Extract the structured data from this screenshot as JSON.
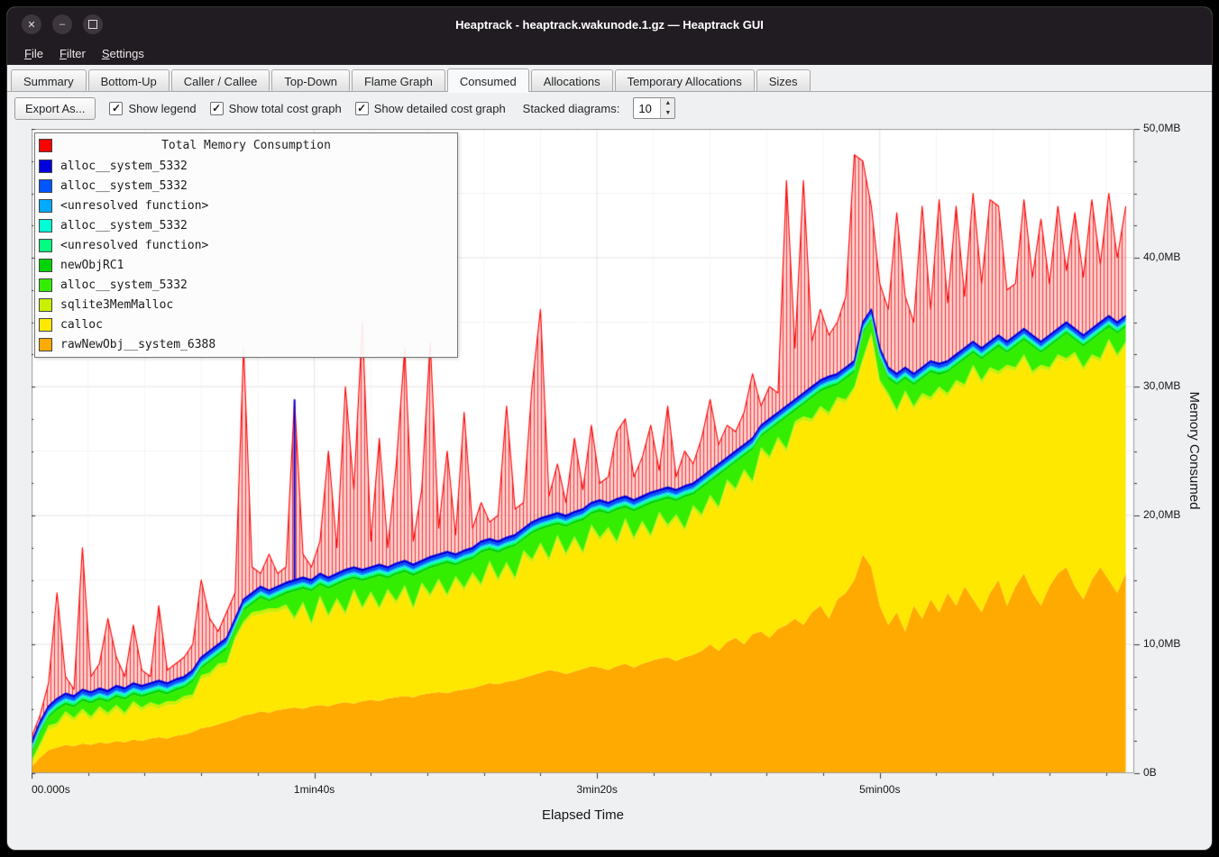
{
  "window": {
    "title": "Heaptrack - heaptrack.wakunode.1.gz — Heaptrack GUI"
  },
  "menu": {
    "items": [
      {
        "label": "File"
      },
      {
        "label": "Filter"
      },
      {
        "label": "Settings"
      }
    ]
  },
  "tabs": [
    {
      "label": "Summary",
      "active": false
    },
    {
      "label": "Bottom-Up",
      "active": false
    },
    {
      "label": "Caller / Callee",
      "active": false
    },
    {
      "label": "Top-Down",
      "active": false
    },
    {
      "label": "Flame Graph",
      "active": false
    },
    {
      "label": "Consumed",
      "active": true
    },
    {
      "label": "Allocations",
      "active": false
    },
    {
      "label": "Temporary Allocations",
      "active": false
    },
    {
      "label": "Sizes",
      "active": false
    }
  ],
  "toolbar": {
    "export_label": "Export As...",
    "checkboxes": [
      {
        "label": "Show legend",
        "checked": true
      },
      {
        "label": "Show total cost graph",
        "checked": true
      },
      {
        "label": "Show detailed cost graph",
        "checked": true
      }
    ],
    "stacked_label": "Stacked diagrams:",
    "stacked_value": "10"
  },
  "legend": {
    "title": "Total Memory Consumption",
    "title_color": "#ff0000",
    "items": [
      {
        "label": "alloc__system_5332",
        "color": "#0000dc"
      },
      {
        "label": "alloc__system_5332",
        "color": "#0055ff"
      },
      {
        "label": "<unresolved function>",
        "color": "#00aaff"
      },
      {
        "label": "alloc__system_5332",
        "color": "#00ffd5"
      },
      {
        "label": "<unresolved function>",
        "color": "#00ff80"
      },
      {
        "label": "newObjRC1",
        "color": "#00d400"
      },
      {
        "label": "alloc__system_5332",
        "color": "#33ee00"
      },
      {
        "label": "sqlite3MemMalloc",
        "color": "#c8f000"
      },
      {
        "label": "calloc",
        "color": "#ffe800"
      },
      {
        "label": "rawNewObj__system_6388",
        "color": "#ffaa00"
      }
    ]
  },
  "axes": {
    "y_label": "Memory Consumed",
    "x_label": "Elapsed Time",
    "y_ticks": [
      {
        "label": "50,0MB",
        "v": 50
      },
      {
        "label": "40,0MB",
        "v": 40
      },
      {
        "label": "30,0MB",
        "v": 30
      },
      {
        "label": "20,0MB",
        "v": 20
      },
      {
        "label": "10,0MB",
        "v": 10
      },
      {
        "label": "0B",
        "v": 0
      }
    ],
    "x_ticks": [
      {
        "label": "00.000s",
        "t": 0,
        "align": "left"
      },
      {
        "label": "1min40s",
        "t": 100,
        "align": "center"
      },
      {
        "label": "3min20s",
        "t": 200,
        "align": "center"
      },
      {
        "label": "5min00s",
        "t": 300,
        "align": "center"
      }
    ]
  },
  "chart_data": {
    "type": "area",
    "stacked": true,
    "title": "Total Memory Consumption",
    "xlabel": "Elapsed Time",
    "ylabel": "Memory Consumed",
    "x_unit": "s",
    "y_unit": "MB",
    "xlim": [
      0,
      390
    ],
    "ylim": [
      0,
      50
    ],
    "x": [
      0,
      3,
      6,
      9,
      12,
      15,
      18,
      21,
      24,
      27,
      30,
      33,
      36,
      39,
      42,
      45,
      48,
      51,
      54,
      57,
      60,
      63,
      66,
      69,
      72,
      75,
      78,
      81,
      84,
      87,
      90,
      93,
      96,
      99,
      102,
      105,
      108,
      111,
      114,
      117,
      120,
      123,
      126,
      129,
      132,
      135,
      138,
      141,
      144,
      147,
      150,
      153,
      156,
      159,
      162,
      165,
      168,
      171,
      174,
      177,
      180,
      183,
      186,
      189,
      192,
      195,
      198,
      201,
      204,
      207,
      210,
      213,
      216,
      219,
      222,
      225,
      228,
      231,
      234,
      237,
      240,
      243,
      246,
      249,
      252,
      255,
      258,
      261,
      264,
      267,
      270,
      273,
      276,
      279,
      282,
      285,
      288,
      291,
      294,
      297,
      300,
      303,
      306,
      309,
      312,
      315,
      318,
      321,
      324,
      327,
      330,
      333,
      336,
      339,
      342,
      345,
      348,
      351,
      354,
      357,
      360,
      363,
      366,
      369,
      372,
      375,
      378,
      381,
      384,
      387
    ],
    "series": [
      {
        "name": "rawNewObj__system_6388",
        "color": "#ffaa00",
        "values": [
          0.5,
          1.2,
          1.8,
          2.0,
          2.2,
          2.1,
          2.3,
          2.2,
          2.4,
          2.3,
          2.5,
          2.4,
          2.6,
          2.5,
          2.7,
          2.8,
          2.7,
          2.9,
          3.0,
          3.2,
          3.5,
          3.6,
          3.8,
          4.0,
          4.2,
          4.5,
          4.6,
          4.8,
          4.7,
          4.9,
          5.0,
          5.1,
          5.0,
          5.2,
          5.3,
          5.2,
          5.4,
          5.5,
          5.4,
          5.6,
          5.7,
          5.6,
          5.8,
          5.9,
          6.0,
          5.9,
          6.1,
          6.2,
          6.3,
          6.2,
          6.4,
          6.5,
          6.6,
          6.8,
          7.0,
          6.9,
          7.1,
          7.2,
          7.4,
          7.6,
          7.8,
          8.0,
          7.9,
          7.7,
          7.9,
          8.1,
          8.3,
          8.2,
          8.0,
          8.3,
          8.5,
          8.2,
          8.5,
          8.7,
          8.9,
          9.0,
          8.7,
          9.0,
          9.2,
          9.5,
          10.0,
          9.5,
          10.2,
          10.5,
          10.0,
          10.8,
          11.0,
          10.5,
          11.2,
          11.5,
          12.0,
          11.5,
          12.5,
          13.0,
          12.0,
          13.5,
          14.0,
          15.0,
          17.0,
          16.0,
          13.0,
          11.5,
          12.5,
          11.0,
          13.0,
          12.0,
          13.5,
          12.5,
          14.0,
          13.0,
          14.5,
          13.5,
          12.5,
          14.0,
          15.0,
          13.0,
          14.5,
          15.5,
          14.0,
          13.0,
          14.5,
          15.5,
          16.0,
          14.5,
          13.5,
          15.0,
          16.0,
          15.0,
          14.0,
          15.5
        ]
      },
      {
        "name": "calloc",
        "color": "#ffe800",
        "values": [
          0.2,
          0.8,
          1.6,
          1.6,
          2.3,
          1.9,
          2.4,
          1.9,
          2.5,
          2.1,
          2.5,
          2.0,
          2.7,
          2.3,
          2.5,
          2.2,
          2.6,
          2.4,
          2.7,
          2.6,
          3.8,
          3.9,
          4.4,
          4.3,
          6.1,
          7.0,
          7.6,
          7.5,
          7.8,
          7.6,
          7.8,
          6.7,
          8.0,
          6.2,
          8.2,
          6.8,
          7.9,
          6.7,
          8.6,
          7.0,
          8.1,
          7.0,
          8.2,
          7.2,
          8.3,
          6.7,
          8.4,
          7.4,
          8.5,
          7.4,
          8.6,
          7.6,
          8.7,
          7.6,
          9.2,
          7.9,
          9.0,
          7.7,
          9.6,
          8.7,
          9.8,
          8.4,
          10.3,
          9.1,
          10.2,
          8.8,
          10.7,
          9.8,
          10.8,
          9.4,
          11.0,
          9.8,
          10.8,
          9.5,
          11.1,
          10.0,
          11.1,
          9.7,
          11.3,
          10.3,
          11.3,
          10.9,
          12.3,
          11.3,
          13.3,
          11.6,
          14.0,
          13.8,
          14.6,
          13.4,
          15.0,
          15.9,
          14.7,
          15.2,
          15.7,
          15.4,
          14.7,
          14.7,
          14.9,
          17.9,
          17.2,
          17.7,
          15.4,
          18.4,
          15.2,
          17.2,
          15.4,
          17.2,
          15.2,
          17.2,
          15.4,
          17.9,
          17.7,
          17.2,
          15.9,
          18.4,
          16.7,
          16.7,
          16.9,
          18.4,
          16.7,
          16.7,
          15.9,
          17.9,
          17.7,
          17.2,
          15.9,
          18.4,
          18.2,
          17.7
        ]
      },
      {
        "name": "sqlite3MemMalloc",
        "color": "#c8f000",
        "constant": 0.3
      },
      {
        "name": "alloc__system_5332",
        "color": "#33ee00",
        "values": [
          0.5,
          0.8,
          0.6,
          1.0,
          0.5,
          0.8,
          0.6,
          1.0,
          0.5,
          0.8,
          0.6,
          1.0,
          0.5,
          0.8,
          0.6,
          1.0,
          0.5,
          0.8,
          0.6,
          1.0,
          0.5,
          0.8,
          0.6,
          1.0,
          0.5,
          0.8,
          0.6,
          1.0,
          0.5,
          0.8,
          0.8,
          2.0,
          1.0,
          2.4,
          0.8,
          2.0,
          1.0,
          2.4,
          0.8,
          2.0,
          1.0,
          2.4,
          0.8,
          2.0,
          1.0,
          2.4,
          0.8,
          2.0,
          1.0,
          2.4,
          0.8,
          2.0,
          1.0,
          2.4,
          0.8,
          2.0,
          1.0,
          2.4,
          0.8,
          2.0,
          1.0,
          2.4,
          0.8,
          2.0,
          1.0,
          2.4,
          0.8,
          2.0,
          1.0,
          2.4,
          0.8,
          2.0,
          1.0,
          2.4,
          0.8,
          2.0,
          1.0,
          2.4,
          0.8,
          2.0,
          1.0,
          2.4,
          0.8,
          2.0,
          1.0,
          2.4,
          0.8,
          2.0,
          1.0,
          2.4,
          0.8,
          0.9,
          1.6,
          1.1,
          1.9,
          0.9,
          1.6,
          1.1,
          1.9,
          0.9,
          1.6,
          1.1,
          1.9,
          0.9,
          1.6,
          1.1,
          1.9,
          0.9,
          1.6,
          1.1,
          1.9,
          0.9,
          1.6,
          1.1,
          1.9,
          0.9,
          1.6,
          1.1,
          1.9,
          0.9,
          1.6,
          1.1,
          1.9,
          0.9,
          1.6,
          1.1,
          1.9,
          0.9,
          1.6,
          1.1
        ]
      },
      {
        "name": "newObjRC1",
        "color": "#00d400",
        "constant": 0.2
      },
      {
        "name": "<unresolved function>",
        "color": "#00ff80",
        "constant": 0.15
      },
      {
        "name": "alloc__system_5332",
        "color": "#00ffd5",
        "constant": 0.1
      },
      {
        "name": "<unresolved function>",
        "color": "#00aaff",
        "constant": 0.1
      },
      {
        "name": "alloc__system_5332",
        "color": "#0055ff",
        "constant": 0.2
      },
      {
        "name": "alloc__system_5332",
        "color": "#0000dc",
        "constant": 0.15
      }
    ],
    "total": {
      "name": "Total Memory Consumption",
      "color": "#ff0000",
      "values": [
        2.8,
        4.5,
        7.0,
        14.0,
        7.5,
        6.5,
        17.5,
        7.5,
        8.5,
        12.0,
        9.0,
        7.5,
        11.5,
        8.0,
        7.5,
        13.0,
        8.0,
        8.5,
        9.0,
        10.0,
        15.0,
        12.0,
        11.0,
        12.5,
        14.0,
        33.0,
        16.0,
        15.5,
        17.0,
        15.5,
        16.0,
        29.0,
        17.0,
        16.0,
        18.0,
        25.0,
        17.5,
        30.0,
        22.0,
        35.0,
        18.0,
        26.0,
        17.5,
        24.0,
        33.0,
        18.0,
        22.0,
        33.5,
        19.0,
        25.0,
        18.5,
        28.0,
        19.0,
        21.0,
        19.5,
        20.0,
        28.5,
        20.5,
        21.0,
        30.0,
        36.0,
        21.5,
        24.0,
        21.0,
        26.0,
        22.0,
        27.0,
        22.5,
        23.0,
        26.5,
        27.5,
        23.0,
        24.5,
        27.0,
        23.5,
        28.5,
        23.0,
        25.0,
        24.0,
        26.0,
        29.0,
        25.5,
        27.0,
        26.5,
        28.0,
        31.0,
        28.5,
        30.0,
        29.5,
        46.0,
        33.0,
        46.0,
        33.5,
        36.0,
        34.0,
        35.0,
        37.0,
        48.0,
        47.5,
        44.0,
        38.0,
        36.0,
        43.5,
        37.0,
        35.0,
        44.0,
        36.0,
        44.5,
        36.5,
        44.0,
        37.0,
        45.0,
        38.0,
        44.5,
        44.0,
        37.5,
        38.0,
        44.5,
        38.5,
        43.0,
        38.0,
        44.0,
        39.0,
        43.5,
        38.5,
        44.5,
        39.5,
        45.0,
        40.0,
        44.0
      ]
    },
    "annotations": [
      {
        "t": 93,
        "from": 15,
        "value": 29,
        "color": "#0000dc"
      }
    ]
  }
}
